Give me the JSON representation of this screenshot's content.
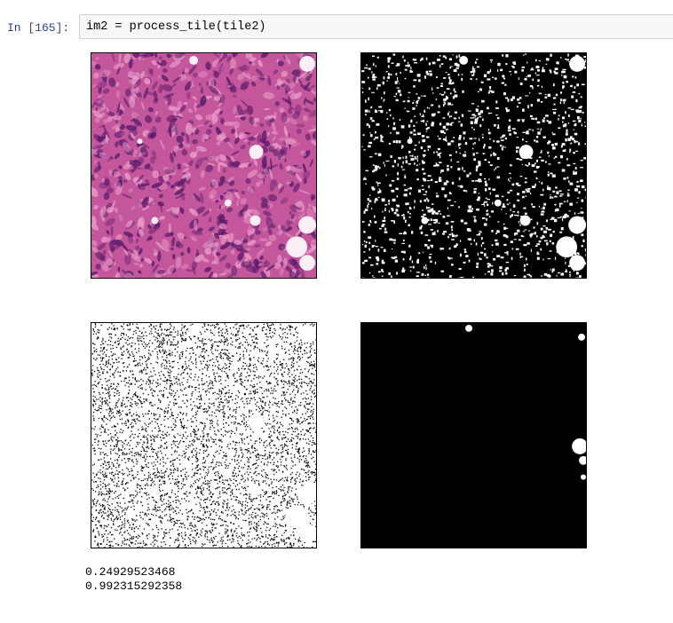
{
  "cell": {
    "prompt": "In [165]:",
    "code": "im2 = process_tile(tile2)"
  },
  "output": {
    "panels": [
      {
        "name": "he-tissue-image",
        "kind": "he-stain"
      },
      {
        "name": "binary-mask-image",
        "kind": "binary"
      },
      {
        "name": "noise-mask-image",
        "kind": "noise"
      },
      {
        "name": "blob-mask-image",
        "kind": "blobs"
      }
    ],
    "values": [
      "0.24929523468",
      "0.992315292358"
    ]
  },
  "colors": {
    "prompt": "#303f9f",
    "stain_base": "#c4579c",
    "stain_dark": "#5b1a6b",
    "stain_light": "#e99bc9"
  }
}
